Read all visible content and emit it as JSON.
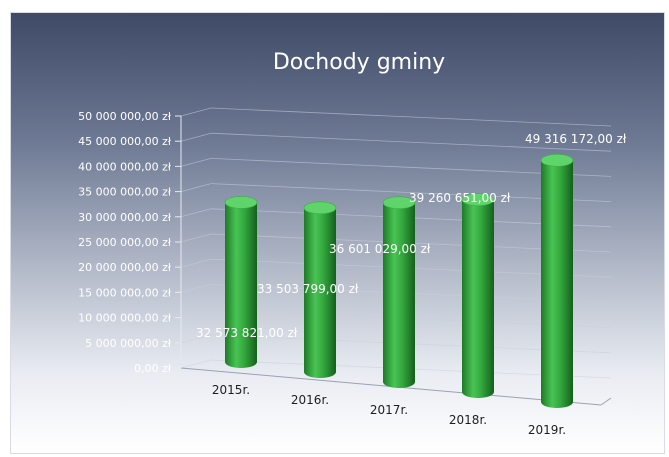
{
  "chart_data": {
    "type": "bar",
    "title": "Dochody gminy",
    "categories": [
      "2015r.",
      "2016r.",
      "2017r.",
      "2018r.",
      "2019r."
    ],
    "values": [
      32573821,
      33503799,
      36601029,
      39260651,
      49316172
    ],
    "data_labels": [
      "32 573 821,00 zł",
      "33 503 799,00 zł",
      "36 601 029,00 zł",
      "39 260 651,00 zł",
      "49 316 172,00 zł"
    ],
    "y_ticks": [
      0,
      5000000,
      10000000,
      15000000,
      20000000,
      25000000,
      30000000,
      35000000,
      40000000,
      45000000,
      50000000
    ],
    "y_tick_labels": [
      "0,00 zł",
      "5 000 000,00 zł",
      "10 000 000,00 zł",
      "15 000 000,00 zł",
      "20 000 000,00 zł",
      "25 000 000,00 zł",
      "30 000 000,00 zł",
      "35 000 000,00 zł",
      "40 000 000,00 zł",
      "45 000 000,00 zł",
      "50 000 000,00 zł"
    ],
    "ylim": [
      0,
      50000000
    ],
    "grid": true,
    "legend": false,
    "style": "3d-cylinder",
    "bar_color": "#2fa43a"
  }
}
